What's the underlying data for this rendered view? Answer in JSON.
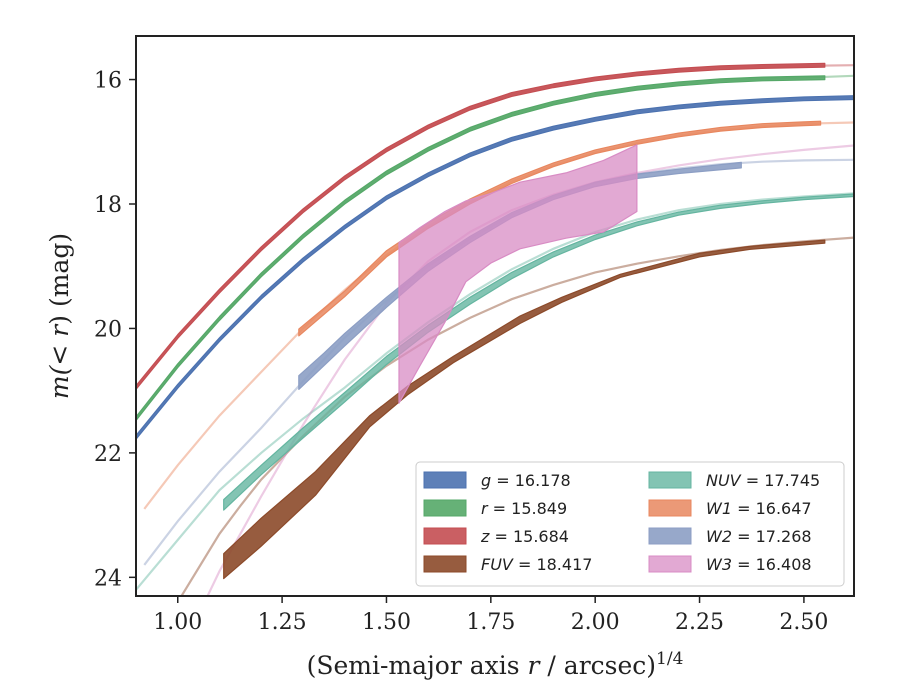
{
  "chart_data": {
    "type": "line",
    "xlabel_main": "(Semi-major axis ",
    "xlabel_var": "r",
    "xlabel_tail": " / arcsec)",
    "xlabel_exp": "1/4",
    "ylabel_pre": "m(",
    "ylabel_var": "< r",
    "ylabel_post": ") (mag)",
    "xlim": [
      0.9,
      2.62
    ],
    "ylim": [
      24.3,
      15.3
    ],
    "y_inverted": true,
    "x_ticks": [
      1.0,
      1.25,
      1.5,
      1.75,
      2.0,
      2.25,
      2.5
    ],
    "x_tick_labels": [
      "1.00",
      "1.25",
      "1.50",
      "1.75",
      "2.00",
      "2.25",
      "2.50"
    ],
    "y_ticks": [
      16,
      18,
      20,
      22,
      24
    ],
    "y_tick_labels": [
      "16",
      "18",
      "20",
      "22",
      "24"
    ],
    "grid": false,
    "legend_position": "lower-right",
    "series": [
      {
        "name_var": "g",
        "name_value": "= 16.178",
        "color": "#4c72b0",
        "italic_name": false,
        "band_width": 0.05,
        "fill_opacity": 0.9,
        "fit_x": [
          0.9,
          1.0,
          1.1,
          1.2,
          1.3,
          1.4,
          1.5,
          1.6,
          1.7,
          1.8,
          1.9,
          2.0,
          2.1,
          2.2,
          2.3,
          2.4,
          2.5,
          2.62
        ],
        "fit_y": [
          21.75,
          20.93,
          20.18,
          19.5,
          18.9,
          18.37,
          17.9,
          17.53,
          17.21,
          16.96,
          16.78,
          16.64,
          16.52,
          16.44,
          16.38,
          16.34,
          16.31,
          16.29
        ],
        "data_x": [
          0.9,
          1.0,
          1.1,
          1.2,
          1.3,
          1.4,
          1.5,
          1.6,
          1.7,
          1.8,
          1.9,
          2.0,
          2.1,
          2.2,
          2.3,
          2.4,
          2.5,
          2.62
        ],
        "data_upper": [
          21.72,
          20.9,
          20.15,
          19.47,
          18.87,
          18.34,
          17.87,
          17.5,
          17.18,
          16.93,
          16.75,
          16.61,
          16.49,
          16.41,
          16.35,
          16.31,
          16.28,
          16.26
        ],
        "data_lower": [
          21.78,
          20.96,
          20.21,
          19.53,
          18.93,
          18.4,
          17.93,
          17.56,
          17.24,
          16.99,
          16.81,
          16.67,
          16.55,
          16.47,
          16.41,
          16.37,
          16.34,
          16.32
        ]
      },
      {
        "name_var": "r",
        "name_value": "= 15.849",
        "color": "#55a868",
        "italic_name": false,
        "band_width": 0.05,
        "fill_opacity": 0.9,
        "fit_x": [
          0.9,
          1.0,
          1.1,
          1.2,
          1.3,
          1.4,
          1.5,
          1.6,
          1.7,
          1.8,
          1.9,
          2.0,
          2.1,
          2.2,
          2.3,
          2.4,
          2.5,
          2.62
        ],
        "fit_y": [
          21.45,
          20.6,
          19.84,
          19.14,
          18.52,
          17.97,
          17.5,
          17.12,
          16.8,
          16.56,
          16.38,
          16.24,
          16.14,
          16.07,
          16.02,
          15.99,
          15.97,
          15.94
        ],
        "data_x": [
          0.9,
          1.0,
          1.1,
          1.2,
          1.3,
          1.4,
          1.5,
          1.6,
          1.7,
          1.8,
          1.9,
          2.0,
          2.1,
          2.2,
          2.3,
          2.4,
          2.55
        ],
        "data_upper": [
          21.42,
          20.57,
          19.81,
          19.11,
          18.49,
          17.94,
          17.47,
          17.09,
          16.77,
          16.53,
          16.35,
          16.21,
          16.11,
          16.04,
          15.99,
          15.96,
          15.94
        ],
        "data_lower": [
          21.48,
          20.63,
          19.87,
          19.17,
          18.55,
          18.0,
          17.53,
          17.15,
          16.83,
          16.59,
          16.41,
          16.27,
          16.17,
          16.1,
          16.05,
          16.02,
          16.0
        ]
      },
      {
        "name_var": "z",
        "name_value": "= 15.684",
        "color": "#c44e52",
        "italic_name": false,
        "band_width": 0.05,
        "fill_opacity": 0.9,
        "fit_x": [
          0.9,
          1.0,
          1.1,
          1.2,
          1.3,
          1.4,
          1.5,
          1.6,
          1.7,
          1.8,
          1.9,
          2.0,
          2.1,
          2.2,
          2.3,
          2.4,
          2.5,
          2.62
        ],
        "fit_y": [
          20.95,
          20.13,
          19.4,
          18.72,
          18.11,
          17.58,
          17.13,
          16.76,
          16.46,
          16.24,
          16.1,
          15.99,
          15.91,
          15.85,
          15.81,
          15.79,
          15.78,
          15.77
        ],
        "data_x": [
          0.9,
          1.0,
          1.1,
          1.2,
          1.3,
          1.4,
          1.5,
          1.6,
          1.7,
          1.8,
          1.9,
          2.0,
          2.1,
          2.2,
          2.3,
          2.4,
          2.55
        ],
        "data_upper": [
          20.92,
          20.1,
          19.37,
          18.69,
          18.08,
          17.55,
          17.1,
          16.73,
          16.43,
          16.21,
          16.07,
          15.96,
          15.88,
          15.82,
          15.78,
          15.76,
          15.74
        ],
        "data_lower": [
          20.98,
          20.16,
          19.43,
          18.75,
          18.14,
          17.61,
          17.16,
          16.79,
          16.49,
          16.27,
          16.13,
          16.02,
          15.94,
          15.88,
          15.84,
          15.82,
          15.8
        ]
      },
      {
        "name_var": "FUV",
        "name_value": "= 18.417",
        "color": "#8c4a2a",
        "italic_name": true,
        "band_width": 0.05,
        "fill_opacity": 0.9,
        "fit_x": [
          0.9,
          0.95,
          1.0,
          1.05,
          1.1,
          1.15,
          1.2,
          1.3,
          1.4,
          1.5,
          1.6,
          1.7,
          1.8,
          1.9,
          2.0,
          2.1,
          2.2,
          2.3,
          2.4,
          2.5,
          2.62
        ],
        "fit_y": [
          26.1,
          25.3,
          24.4,
          23.85,
          23.3,
          22.85,
          22.43,
          21.73,
          21.1,
          20.6,
          20.18,
          19.83,
          19.53,
          19.3,
          19.1,
          18.96,
          18.84,
          18.74,
          18.66,
          18.6,
          18.54
        ],
        "data_x": [
          1.11,
          1.2,
          1.33,
          1.46,
          1.55,
          1.66,
          1.82,
          1.92,
          2.06,
          2.25,
          2.37,
          2.55
        ],
        "data_upper": [
          23.62,
          23.05,
          22.3,
          21.4,
          20.93,
          20.45,
          19.8,
          19.5,
          19.13,
          18.79,
          18.68,
          18.58
        ],
        "data_lower": [
          24.02,
          23.5,
          22.68,
          21.58,
          21.07,
          20.55,
          19.92,
          19.58,
          19.18,
          18.85,
          18.73,
          18.63
        ]
      },
      {
        "name_var": "NUV",
        "name_value": "= 17.745",
        "color": "#64b5a0",
        "italic_name": true,
        "band_width": 0.06,
        "fill_opacity": 0.8,
        "fit_x": [
          0.9,
          1.0,
          1.1,
          1.2,
          1.3,
          1.4,
          1.5,
          1.6,
          1.7,
          1.8,
          1.9,
          2.0,
          2.1,
          2.2,
          2.3,
          2.4,
          2.5,
          2.62
        ],
        "fit_y": [
          24.2,
          23.4,
          22.6,
          22.0,
          21.45,
          20.95,
          20.4,
          19.9,
          19.45,
          19.05,
          18.72,
          18.45,
          18.25,
          18.1,
          18.0,
          17.93,
          17.88,
          17.83
        ],
        "data_x": [
          1.11,
          1.2,
          1.3,
          1.4,
          1.5,
          1.6,
          1.7,
          1.8,
          1.9,
          2.0,
          2.1,
          2.2,
          2.3,
          2.4,
          2.5,
          2.62
        ],
        "data_upper": [
          22.75,
          22.2,
          21.6,
          21.03,
          20.45,
          19.95,
          19.5,
          19.1,
          18.77,
          18.5,
          18.29,
          18.13,
          18.02,
          17.95,
          17.89,
          17.84
        ],
        "data_lower": [
          22.92,
          22.35,
          21.76,
          21.18,
          20.58,
          20.06,
          19.61,
          19.2,
          18.85,
          18.57,
          18.35,
          18.18,
          18.07,
          17.99,
          17.93,
          17.88
        ]
      },
      {
        "name_var": "W1",
        "name_value": "= 16.647",
        "color": "#e8875f",
        "italic_name": true,
        "band_width": 0.06,
        "fill_opacity": 0.85,
        "fit_x": [
          0.92,
          1.0,
          1.1,
          1.2,
          1.3,
          1.4,
          1.5,
          1.6,
          1.7,
          1.8,
          1.9,
          2.0,
          2.1,
          2.2,
          2.3,
          2.4,
          2.5,
          2.62
        ],
        "fit_y": [
          22.9,
          22.2,
          21.4,
          20.7,
          20.0,
          19.38,
          18.82,
          18.36,
          17.97,
          17.64,
          17.38,
          17.17,
          17.02,
          16.9,
          16.81,
          16.75,
          16.71,
          16.69
        ],
        "data_x": [
          1.29,
          1.4,
          1.5,
          1.6,
          1.7,
          1.8,
          1.9,
          2.0,
          2.1,
          2.2,
          2.3,
          2.4,
          2.5,
          2.54
        ],
        "data_upper": [
          20.01,
          19.4,
          18.75,
          18.3,
          17.92,
          17.6,
          17.34,
          17.13,
          16.98,
          16.86,
          16.77,
          16.71,
          16.68,
          16.67
        ],
        "data_lower": [
          20.12,
          19.49,
          18.85,
          18.39,
          18.0,
          17.67,
          17.4,
          17.19,
          17.04,
          16.92,
          16.83,
          16.77,
          16.74,
          16.73
        ]
      },
      {
        "name_var": "W2",
        "name_value": "= 17.268",
        "color": "#8c9ec4",
        "italic_name": true,
        "band_width": 0.06,
        "fill_opacity": 0.9,
        "fit_x": [
          0.92,
          1.0,
          1.1,
          1.2,
          1.3,
          1.4,
          1.5,
          1.6,
          1.7,
          1.8,
          1.9,
          2.0,
          2.1,
          2.2,
          2.3,
          2.4,
          2.5,
          2.62
        ],
        "fit_y": [
          23.8,
          23.1,
          22.3,
          21.6,
          20.85,
          20.15,
          19.55,
          19.0,
          18.56,
          18.17,
          17.88,
          17.66,
          17.52,
          17.43,
          17.36,
          17.32,
          17.3,
          17.29
        ],
        "data_x": [
          1.29,
          1.35,
          1.4,
          1.5,
          1.6,
          1.7,
          1.8,
          1.9,
          2.0,
          2.1,
          2.2,
          2.35
        ],
        "data_upper": [
          20.76,
          20.4,
          20.08,
          19.5,
          18.96,
          18.52,
          18.14,
          17.86,
          17.65,
          17.52,
          17.44,
          17.33
        ],
        "data_lower": [
          20.98,
          20.6,
          20.28,
          19.66,
          19.08,
          18.62,
          18.22,
          17.93,
          17.72,
          17.59,
          17.51,
          17.42
        ]
      },
      {
        "name_var": "W3",
        "name_value": "= 16.408",
        "color": "#d88cc4",
        "italic_name": true,
        "band_width": 0.06,
        "fill_opacity": 0.75,
        "fit_x": [
          1.05,
          1.1,
          1.15,
          1.2,
          1.3,
          1.4,
          1.5,
          1.6,
          1.7,
          1.8,
          1.9,
          2.0,
          2.1,
          2.2,
          2.3,
          2.4,
          2.5,
          2.62
        ],
        "fit_y": [
          24.6,
          23.9,
          23.3,
          22.7,
          21.55,
          20.5,
          19.6,
          18.92,
          18.45,
          18.1,
          17.85,
          17.65,
          17.5,
          17.38,
          17.28,
          17.2,
          17.13,
          17.06
        ],
        "data_x": [
          1.53,
          1.58,
          1.64,
          1.69,
          1.75,
          1.82,
          1.93,
          2.02,
          2.1
        ],
        "data_upper": [
          18.62,
          18.38,
          18.12,
          17.95,
          17.83,
          17.65,
          17.5,
          17.3,
          17.05
        ],
        "data_lower": [
          21.2,
          20.6,
          19.9,
          19.25,
          18.95,
          18.72,
          18.55,
          18.45,
          18.12
        ]
      }
    ]
  }
}
